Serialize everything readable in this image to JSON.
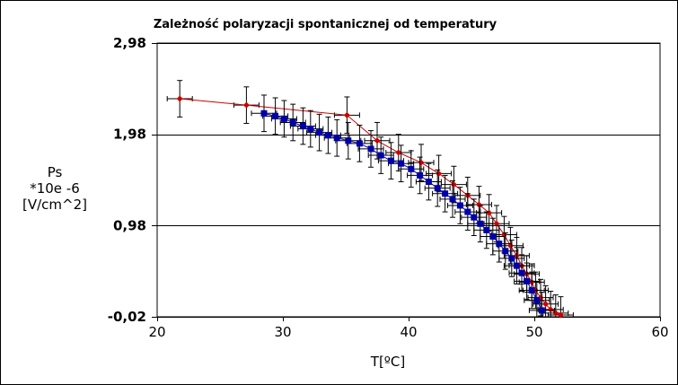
{
  "chart_data": {
    "type": "scatter",
    "title": "Zależność polaryzacji spontanicznej od temperatury",
    "xlabel": "T[ºC]",
    "ylabel_lines": [
      "Ps",
      "*10e -6",
      "[V/cm^2]"
    ],
    "xlim": [
      20,
      60
    ],
    "ylim": [
      -0.02,
      2.98
    ],
    "x_ticks": [
      20,
      30,
      40,
      50,
      60
    ],
    "x_tick_labels": [
      "20",
      "30",
      "40",
      "50",
      "60"
    ],
    "y_ticks": [
      -0.02,
      0.98,
      1.98,
      2.98
    ],
    "y_tick_labels": [
      "-0,02",
      "0,98",
      "1,98",
      "2,98"
    ],
    "grid": "horizontal",
    "legend": "none",
    "error_x": 1.0,
    "error_y": 0.2,
    "series": [
      {
        "color": "#cc0000",
        "marker": "diamond",
        "x": [
          21.8,
          27.1,
          35.1,
          37.5,
          39.2,
          41.0,
          42.4,
          43.6,
          44.7,
          45.6,
          46.4,
          47.0,
          47.6,
          48.1,
          48.6,
          49.0,
          49.4,
          49.8,
          50.1,
          50.5,
          50.9,
          51.3,
          51.7,
          52.1
        ],
        "y": [
          2.37,
          2.3,
          2.19,
          1.91,
          1.78,
          1.67,
          1.55,
          1.43,
          1.31,
          1.21,
          1.12,
          1.0,
          0.88,
          0.76,
          0.65,
          0.54,
          0.45,
          0.36,
          0.27,
          0.19,
          0.12,
          0.06,
          0.02,
          0.0
        ]
      },
      {
        "color": "#0000aa",
        "marker": "square",
        "x": [
          28.5,
          29.4,
          30.1,
          30.8,
          31.6,
          32.2,
          32.9,
          33.6,
          34.3,
          35.2,
          36.1,
          37.0,
          37.8,
          38.6,
          39.4,
          40.2,
          40.9,
          41.6,
          42.3,
          42.9,
          43.5,
          44.1,
          44.7,
          45.2,
          45.7,
          46.2,
          46.7,
          47.2,
          47.7,
          48.2,
          48.6,
          49.0,
          49.4,
          49.8,
          50.2,
          50.6
        ],
        "y": [
          2.21,
          2.18,
          2.15,
          2.11,
          2.07,
          2.04,
          2.0,
          1.97,
          1.94,
          1.91,
          1.88,
          1.82,
          1.75,
          1.69,
          1.66,
          1.6,
          1.53,
          1.46,
          1.39,
          1.33,
          1.27,
          1.2,
          1.13,
          1.07,
          1.0,
          0.93,
          0.86,
          0.78,
          0.7,
          0.62,
          0.54,
          0.46,
          0.37,
          0.27,
          0.16,
          0.05
        ]
      }
    ]
  }
}
